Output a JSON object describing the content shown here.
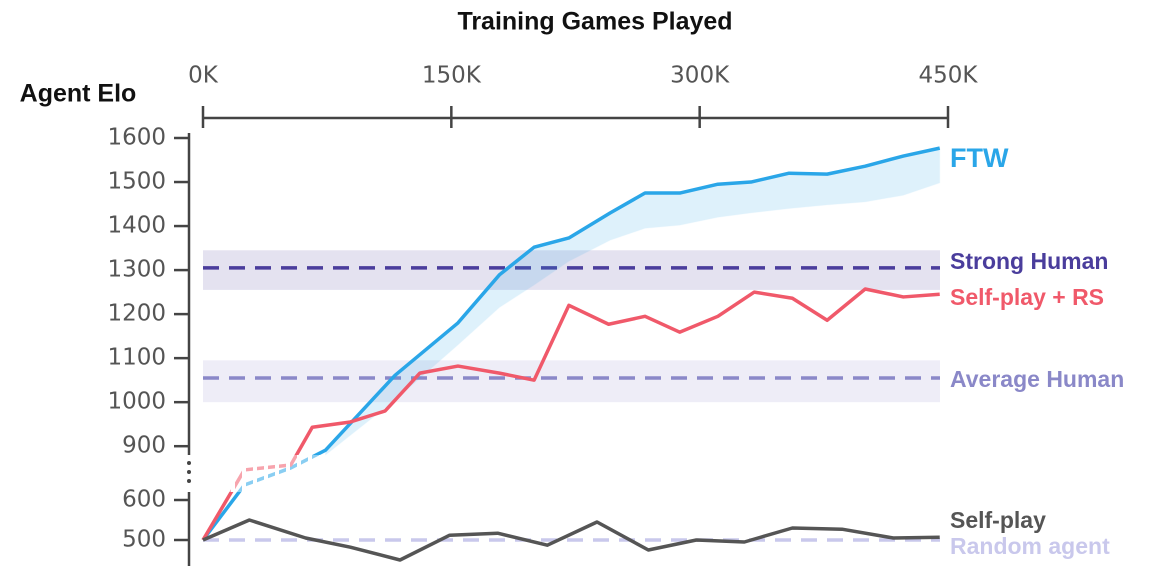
{
  "chart_data": {
    "type": "line",
    "title": "Training Games Played",
    "y_label": "Agent Elo",
    "xlim": [
      0,
      450
    ],
    "xticks": [
      {
        "value": 0,
        "label": "0K"
      },
      {
        "value": 150,
        "label": "150K"
      },
      {
        "value": 300,
        "label": "300K"
      },
      {
        "value": 450,
        "label": "450K"
      }
    ],
    "ylim_lower": [
      440,
      620
    ],
    "ylim_upper": [
      880,
      1610
    ],
    "yticks": [
      500,
      600,
      900,
      1000,
      1100,
      1200,
      1300,
      1400,
      1500,
      1600
    ],
    "series": [
      {
        "name": "FTW",
        "color": "#2aa6e8",
        "x": [
          0,
          25,
          53,
          74,
          116,
          154,
          179,
          200,
          221,
          246,
          267,
          288,
          311,
          331,
          354,
          377,
          400,
          423,
          445
        ],
        "values": [
          500,
          669,
          789,
          891,
          1061,
          1180,
          1289,
          1352,
          1373,
          1430,
          1475,
          1475,
          1495,
          1500,
          1520,
          1518,
          1536,
          1559,
          1577
        ],
        "band_lower": [
          null,
          null,
          null,
          880,
          1005,
          1130,
          1215,
          1266,
          1320,
          1368,
          1395,
          1402,
          1420,
          1430,
          1440,
          1448,
          1455,
          1470,
          1498
        ]
      },
      {
        "name": "Self-play + RS",
        "color": "#f0596a",
        "x": [
          0,
          25,
          53,
          66,
          89,
          110,
          131,
          154,
          179,
          200,
          221,
          245,
          267,
          288,
          311,
          333,
          356,
          377,
          400,
          423,
          445
        ],
        "values": [
          500,
          775,
          810,
          943,
          955,
          980,
          1066,
          1082,
          1066,
          1050,
          1220,
          1177,
          1195,
          1159,
          1195,
          1250,
          1236,
          1186,
          1257,
          1239,
          1245
        ]
      },
      {
        "name": "Self-play",
        "color": "#555555",
        "x": [
          0,
          28,
          62,
          89,
          119,
          149,
          178,
          208,
          238,
          269,
          298,
          327,
          356,
          386,
          417,
          445
        ],
        "values": [
          500,
          550,
          505,
          482,
          450,
          512,
          517,
          487,
          545,
          475,
          500,
          495,
          530,
          527,
          505,
          507
        ]
      }
    ],
    "references": [
      {
        "name": "Strong Human",
        "value": 1305,
        "band": [
          1255,
          1345
        ],
        "color": "#4a3d9c"
      },
      {
        "name": "Average Human",
        "value": 1055,
        "band": [
          1000,
          1095
        ],
        "color": "#8a88c8"
      },
      {
        "name": "Random agent",
        "value": 500,
        "color": "#c9c8ec"
      }
    ]
  }
}
